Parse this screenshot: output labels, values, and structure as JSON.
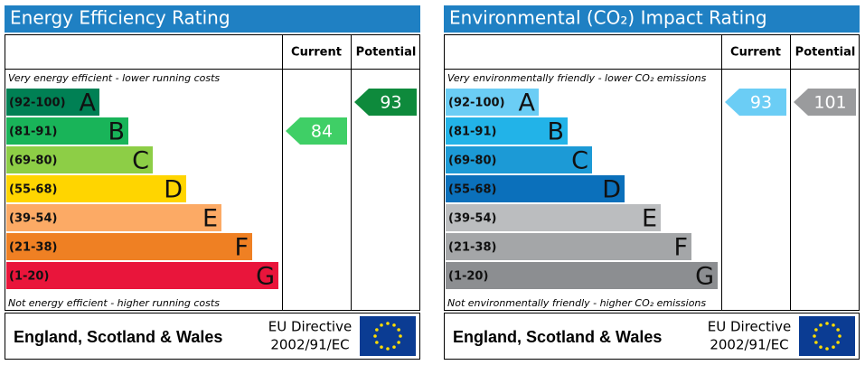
{
  "panels": [
    {
      "title": "Energy Efficiency Rating",
      "headers": [
        "Current",
        "Potential"
      ],
      "top_note": "Very energy efficient - lower running costs",
      "bottom_note": "Not energy efficient - higher running costs",
      "bands": [
        {
          "range": "(92-100)",
          "letter": "A",
          "color": "#008054"
        },
        {
          "range": "(81-91)",
          "letter": "B",
          "color": "#19b459"
        },
        {
          "range": "(69-80)",
          "letter": "C",
          "color": "#8dce46"
        },
        {
          "range": "(55-68)",
          "letter": "D",
          "color": "#ffd500"
        },
        {
          "range": "(39-54)",
          "letter": "E",
          "color": "#fcaa65"
        },
        {
          "range": "(21-38)",
          "letter": "F",
          "color": "#ef8023"
        },
        {
          "range": "(1-20)",
          "letter": "G",
          "color": "#e9153b"
        }
      ],
      "current": {
        "value": 84,
        "color": "#3fcf66"
      },
      "potential": {
        "value": 93,
        "color": "#0e8a3c"
      },
      "footer": {
        "region": "England, Scotland & Wales",
        "directive": "EU Directive",
        "code": "2002/91/EC"
      }
    },
    {
      "title": "Environmental (CO₂) Impact Rating",
      "headers": [
        "Current",
        "Potential"
      ],
      "top_note": "Very environmentally friendly - lower CO₂ emissions",
      "bottom_note": "Not environmentally friendly - higher CO₂ emissions",
      "bands": [
        {
          "range": "(92-100)",
          "letter": "A",
          "color": "#6bcdf5"
        },
        {
          "range": "(81-91)",
          "letter": "B",
          "color": "#22b3e8"
        },
        {
          "range": "(69-80)",
          "letter": "C",
          "color": "#1c9ad6"
        },
        {
          "range": "(55-68)",
          "letter": "D",
          "color": "#0b70bb"
        },
        {
          "range": "(39-54)",
          "letter": "E",
          "color": "#bbbdbf"
        },
        {
          "range": "(21-38)",
          "letter": "F",
          "color": "#a4a6a8"
        },
        {
          "range": "(1-20)",
          "letter": "G",
          "color": "#8c8e91"
        }
      ],
      "current": {
        "value": 93,
        "color": "#6bcdf5"
      },
      "potential": {
        "value": 101,
        "color": "#9a9b9d"
      },
      "footer": {
        "region": "England, Scotland & Wales",
        "directive": "EU Directive",
        "code": "2002/91/EC"
      }
    }
  ]
}
